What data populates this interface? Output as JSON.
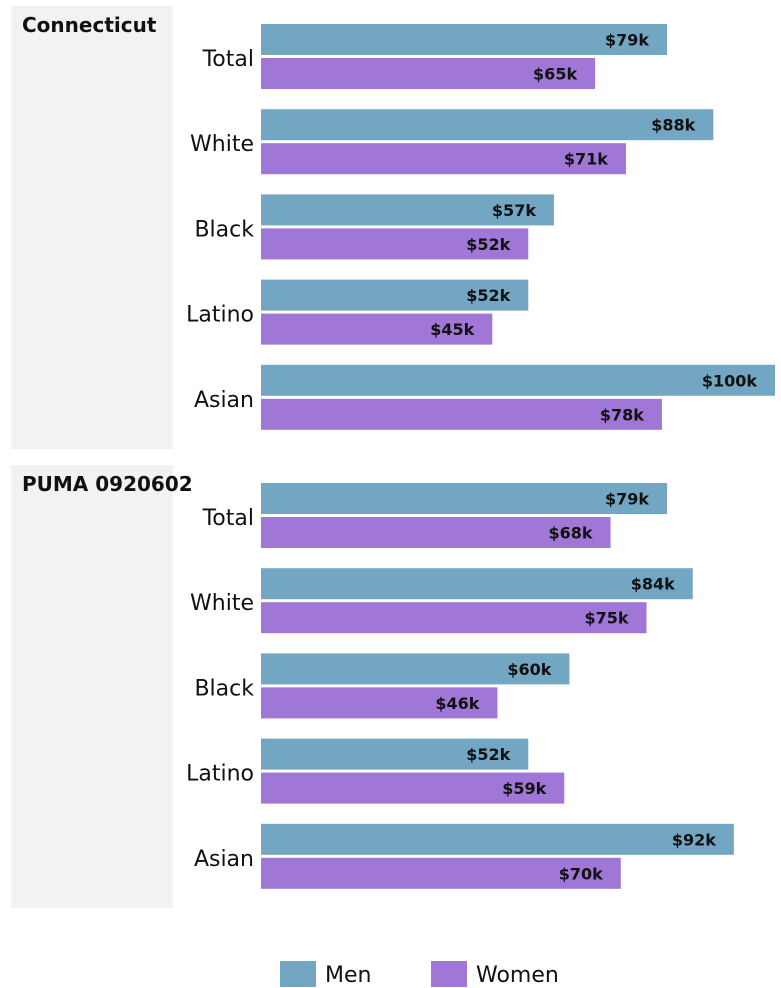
{
  "chart_data": {
    "type": "bar",
    "orientation": "horizontal",
    "grid": false,
    "legend_position": "bottom",
    "colors": {
      "Men": "#73a6c2",
      "Women": "#a076d6",
      "panel_bg": "#f2f2f2"
    },
    "xlim": [
      0,
      100
    ],
    "legend": [
      "Men",
      "Women"
    ],
    "panels": [
      {
        "title": "Connecticut",
        "categories": [
          "Total",
          "White",
          "Black",
          "Latino",
          "Asian"
        ],
        "series": [
          {
            "name": "Men",
            "values": [
              79,
              88,
              57,
              52,
              100
            ],
            "labels": [
              "$79k",
              "$88k",
              "$57k",
              "$52k",
              "$100k"
            ]
          },
          {
            "name": "Women",
            "values": [
              65,
              71,
              52,
              45,
              78
            ],
            "labels": [
              "$65k",
              "$71k",
              "$52k",
              "$45k",
              "$78k"
            ]
          }
        ]
      },
      {
        "title": "PUMA 0920602",
        "categories": [
          "Total",
          "White",
          "Black",
          "Latino",
          "Asian"
        ],
        "series": [
          {
            "name": "Men",
            "values": [
              79,
              84,
              60,
              52,
              92
            ],
            "labels": [
              "$79k",
              "$84k",
              "$60k",
              "$52k",
              "$92k"
            ]
          },
          {
            "name": "Women",
            "values": [
              68,
              75,
              46,
              59,
              70
            ],
            "labels": [
              "$68k",
              "$75k",
              "$46k",
              "$59k",
              "$70k"
            ]
          }
        ]
      }
    ]
  }
}
